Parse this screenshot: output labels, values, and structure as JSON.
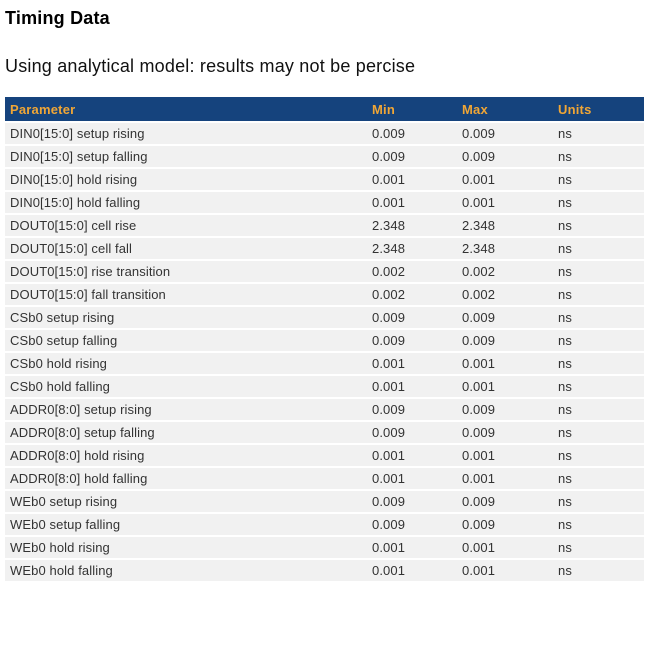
{
  "page": {
    "title": "Timing Data",
    "subtitle": "Using analytical model: results may not be percise"
  },
  "colors": {
    "table_header_bg": "#15437d",
    "table_header_text": "#f0a636",
    "row_bg": "#f1f1f1",
    "row_text": "#333333",
    "page_bg": "#ffffff"
  },
  "table": {
    "headers": [
      "Parameter",
      "Min",
      "Max",
      "Units"
    ],
    "rows": [
      {
        "parameter": "DIN0[15:0] setup rising",
        "min": "0.009",
        "max": "0.009",
        "units": "ns"
      },
      {
        "parameter": "DIN0[15:0] setup falling",
        "min": "0.009",
        "max": "0.009",
        "units": "ns"
      },
      {
        "parameter": "DIN0[15:0] hold rising",
        "min": "0.001",
        "max": "0.001",
        "units": "ns"
      },
      {
        "parameter": "DIN0[15:0] hold falling",
        "min": "0.001",
        "max": "0.001",
        "units": "ns"
      },
      {
        "parameter": "DOUT0[15:0] cell rise",
        "min": "2.348",
        "max": "2.348",
        "units": "ns"
      },
      {
        "parameter": "DOUT0[15:0] cell fall",
        "min": "2.348",
        "max": "2.348",
        "units": "ns"
      },
      {
        "parameter": "DOUT0[15:0] rise transition",
        "min": "0.002",
        "max": "0.002",
        "units": "ns"
      },
      {
        "parameter": "DOUT0[15:0] fall transition",
        "min": "0.002",
        "max": "0.002",
        "units": "ns"
      },
      {
        "parameter": "CSb0 setup rising",
        "min": "0.009",
        "max": "0.009",
        "units": "ns"
      },
      {
        "parameter": "CSb0 setup falling",
        "min": "0.009",
        "max": "0.009",
        "units": "ns"
      },
      {
        "parameter": "CSb0 hold rising",
        "min": "0.001",
        "max": "0.001",
        "units": "ns"
      },
      {
        "parameter": "CSb0 hold falling",
        "min": "0.001",
        "max": "0.001",
        "units": "ns"
      },
      {
        "parameter": "ADDR0[8:0] setup rising",
        "min": "0.009",
        "max": "0.009",
        "units": "ns"
      },
      {
        "parameter": "ADDR0[8:0] setup falling",
        "min": "0.009",
        "max": "0.009",
        "units": "ns"
      },
      {
        "parameter": "ADDR0[8:0] hold rising",
        "min": "0.001",
        "max": "0.001",
        "units": "ns"
      },
      {
        "parameter": "ADDR0[8:0] hold falling",
        "min": "0.001",
        "max": "0.001",
        "units": "ns"
      },
      {
        "parameter": "WEb0 setup rising",
        "min": "0.009",
        "max": "0.009",
        "units": "ns"
      },
      {
        "parameter": "WEb0 setup falling",
        "min": "0.009",
        "max": "0.009",
        "units": "ns"
      },
      {
        "parameter": "WEb0 hold rising",
        "min": "0.001",
        "max": "0.001",
        "units": "ns"
      },
      {
        "parameter": "WEb0 hold falling",
        "min": "0.001",
        "max": "0.001",
        "units": "ns"
      }
    ]
  }
}
